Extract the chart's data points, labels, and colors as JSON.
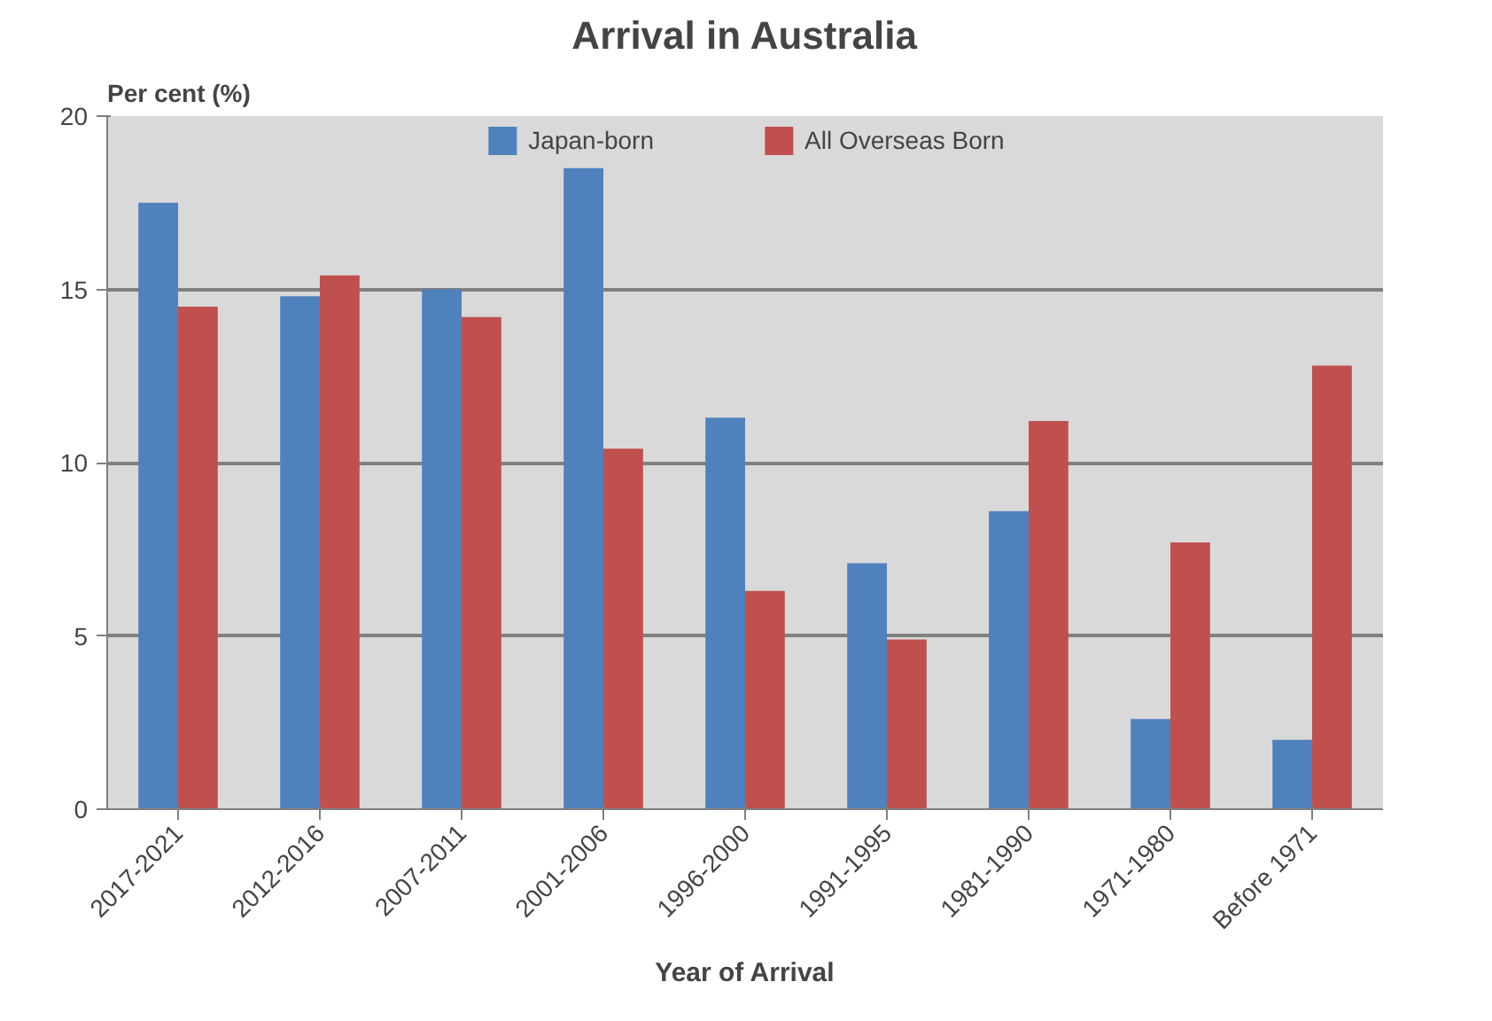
{
  "chart_data": {
    "type": "bar",
    "title": "Arrival in Australia",
    "xlabel": "Year of Arrival",
    "ylabel": "Per cent (%)",
    "categories": [
      "2017-2021",
      "2012-2016",
      "2007-2011",
      "2001-2006",
      "1996-2000",
      "1991-1995",
      "1981-1990",
      "1971-1980",
      "Before 1971"
    ],
    "series": [
      {
        "name": "Japan-born",
        "color": "#4f81bd",
        "values": [
          17.5,
          14.8,
          15.0,
          18.5,
          11.3,
          7.1,
          8.6,
          2.6,
          2.0
        ]
      },
      {
        "name": "All Overseas Born",
        "color": "#c0504d",
        "values": [
          14.5,
          15.4,
          14.2,
          10.4,
          6.3,
          4.9,
          11.2,
          7.7,
          12.8
        ]
      }
    ],
    "ylim": [
      0,
      20
    ],
    "yticks": [
      0,
      5,
      10,
      15,
      20
    ],
    "grid": "y",
    "legend": "top"
  }
}
